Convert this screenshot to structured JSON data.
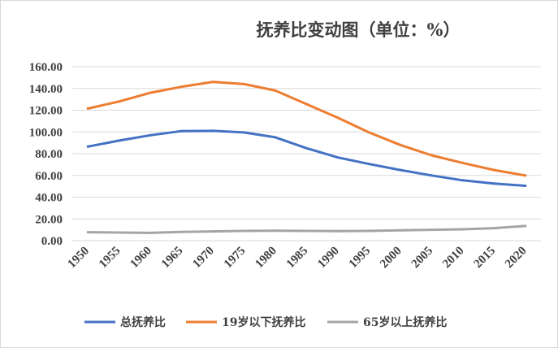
{
  "chart_data": {
    "type": "line",
    "title": "抚养比变动图（单位：%）",
    "xlabel": "",
    "ylabel": "",
    "x": [
      "1950",
      "1955",
      "1960",
      "1965",
      "1970",
      "1975",
      "1980",
      "1985",
      "1990",
      "1995",
      "2000",
      "2005",
      "2010",
      "2015",
      "2020"
    ],
    "ylim": [
      0,
      160
    ],
    "yticks": [
      "0.00",
      "20.00",
      "40.00",
      "60.00",
      "80.00",
      "100.00",
      "120.00",
      "140.00",
      "160.00"
    ],
    "grid": true,
    "legend_position": "bottom",
    "series": [
      {
        "name": "总抚养比",
        "color": "#4472c4",
        "values": [
          86.5,
          92.0,
          97.0,
          100.8,
          101.0,
          99.5,
          95.0,
          85.0,
          76.5,
          70.5,
          65.0,
          60.0,
          55.5,
          52.5,
          50.5
        ]
      },
      {
        "name": "19岁以下抚养比",
        "color": "#ed7d31",
        "values": [
          121.5,
          128.0,
          136.0,
          141.5,
          146.0,
          144.0,
          138.0,
          125.5,
          113.0,
          99.5,
          88.0,
          78.5,
          71.5,
          65.0,
          60.0
        ]
      },
      {
        "name": "65岁以上抚养比",
        "color": "#a5a5a5",
        "values": [
          7.8,
          7.5,
          7.2,
          8.0,
          8.5,
          9.0,
          9.2,
          9.0,
          8.8,
          9.0,
          9.5,
          10.0,
          10.5,
          11.5,
          13.5
        ]
      }
    ]
  }
}
